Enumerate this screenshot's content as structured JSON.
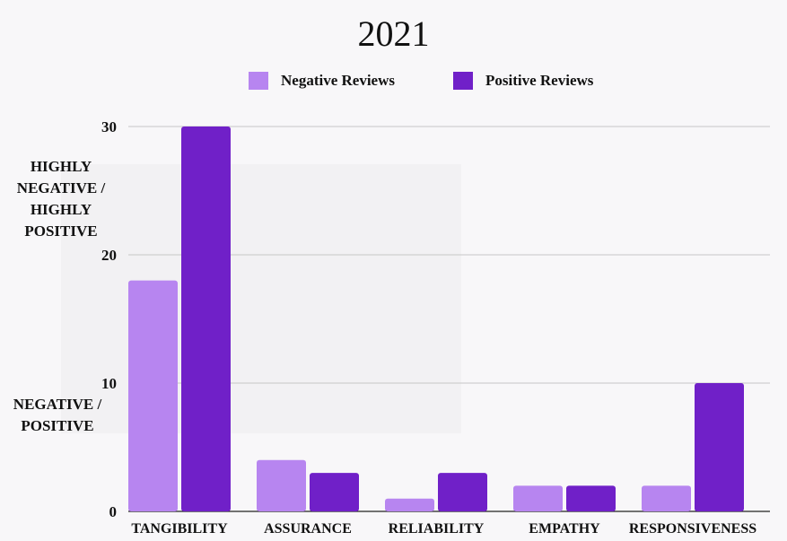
{
  "chart_data": {
    "type": "bar",
    "title": "2021",
    "categories": [
      "TANGIBILITY",
      "ASSURANCE",
      "RELIABILITY",
      "EMPATHY",
      "RESPONSIVENESS"
    ],
    "series": [
      {
        "name": "Negative Reviews",
        "color": "#b785f0",
        "values": [
          18,
          4,
          1,
          2,
          2
        ]
      },
      {
        "name": "Positive Reviews",
        "color": "#7020c8",
        "values": [
          30,
          3,
          3,
          2,
          10
        ]
      }
    ],
    "ylim": [
      0,
      30
    ],
    "yticks": [
      "0",
      "10",
      "20",
      "30"
    ],
    "grid": true,
    "legend_position": "top-center",
    "annotations": {
      "high": [
        "HIGHLY",
        "NEGATIVE /",
        "HIGHLY",
        "POSITIVE"
      ],
      "normal": [
        "NEGATIVE /",
        "POSITIVE"
      ]
    }
  }
}
